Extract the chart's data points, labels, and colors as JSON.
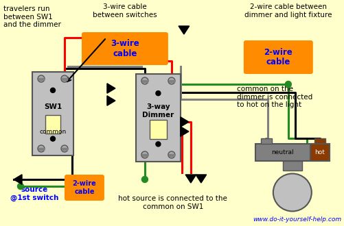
{
  "bg_color": "#FFFFCC",
  "website": "www.do-it-yourself-help.com",
  "colors": {
    "black": "#000000",
    "red": "#FF0000",
    "green": "#228B22",
    "white": "#FFFFFF",
    "gray": "#999999",
    "orange": "#FF8C00",
    "blue": "#0000FF",
    "dark_gray": "#555555",
    "light_gray": "#C0C0C0",
    "wire_gray": "#808080",
    "brown": "#8B3A00",
    "screw_gray": "#AAAAAA",
    "toggle_cream": "#FFFFAA"
  },
  "labels": {
    "travelers": "travelers run\nbetween SW1\nand the dimmer",
    "three_wire_top": "3-wire cable\nbetween switches",
    "three_wire_box": "3-wire\ncable",
    "two_wire_top": "2-wire cable between\ndimmer and light fixture",
    "two_wire_box_right": "2-wire\ncable",
    "two_wire_box_left": "2-wire\ncable",
    "common_note": "common on the\ndimmer is connected\nto hot on the light",
    "sw1_label": "SW1",
    "common_label": "common",
    "dimmer_label": "3-way\nDimmer",
    "neutral_label": "neutral",
    "hot_label": "hot",
    "source_label": "source\n@1st switch",
    "hot_source_note": "hot source is connected to the\ncommon on SW1"
  }
}
